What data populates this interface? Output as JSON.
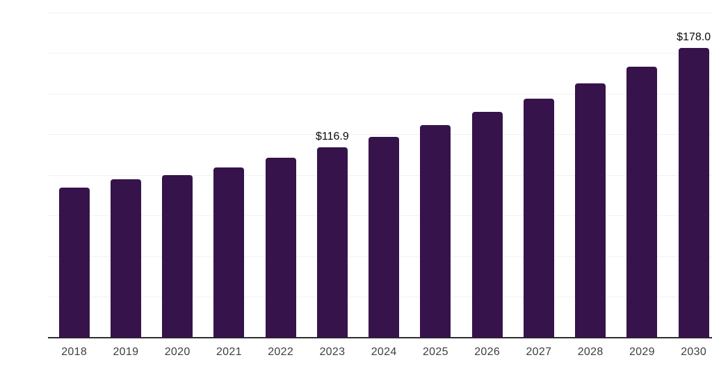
{
  "chart_data": {
    "type": "bar",
    "title": "",
    "xlabel": "",
    "ylabel": "",
    "categories": [
      "2018",
      "2019",
      "2020",
      "2021",
      "2022",
      "2023",
      "2024",
      "2025",
      "2026",
      "2027",
      "2028",
      "2029",
      "2030"
    ],
    "values": [
      92.2,
      97.2,
      99.8,
      104.8,
      110.5,
      116.9,
      123.4,
      130.7,
      138.6,
      146.9,
      156.3,
      166.4,
      178.0
    ],
    "data_labels": [
      "",
      "",
      "",
      "",
      "",
      "$116.9",
      "",
      "",
      "",
      "",
      "",
      "",
      "$178.0"
    ],
    "ylim": [
      0,
      200
    ],
    "gridline_step": 25,
    "grid": "horizontal",
    "legend_position": "none",
    "y_axis_tick_labels_visible": false
  },
  "colors": {
    "background": "#ffffff",
    "bar": "#36134A",
    "gridline": "#f1f1f1",
    "axis_line": "#2e2e2e",
    "tick_label": "#3e3e3e",
    "data_label": "#0a0a0a"
  }
}
